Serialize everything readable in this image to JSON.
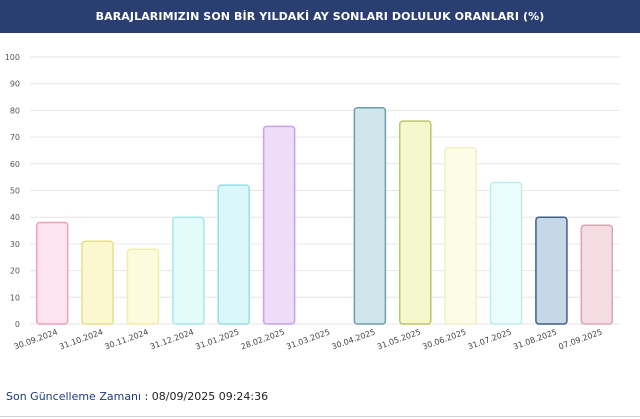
{
  "header": {
    "title": "BARAJLARIMIZIN SON BİR YILDAKİ AY SONLARI DOLULUK ORANLARI (%)"
  },
  "footer": {
    "label": "Son Güncelleme Zamanı",
    "separator": " : ",
    "value": "08/09/2025 09:24:36"
  },
  "chart_data": {
    "type": "bar",
    "title": "BARAJLARIMIZIN SON BİR YILDAKİ AY SONLARI DOLULUK ORANLARI (%)",
    "xlabel": "",
    "ylabel": "",
    "ylim": [
      0,
      100
    ],
    "yticks": [
      0,
      10,
      20,
      30,
      40,
      50,
      60,
      70,
      80,
      90,
      100
    ],
    "grid": true,
    "categories": [
      "30.09.2024",
      "31.10.2024",
      "30.11.2024",
      "31.12.2024",
      "31.01.2025",
      "28.02.2025",
      "31.03.2025",
      "30.04.2025",
      "31.05.2025",
      "30.06.2025",
      "31.07.2025",
      "31.08.2025",
      "07.09.2025"
    ],
    "values": [
      38,
      31,
      28,
      40,
      52,
      74,
      null,
      81,
      76,
      66,
      53,
      40,
      37
    ],
    "colors": [
      "#fde4ee",
      "#fbf8cf",
      "#fcfbdc",
      "#e3fbfb",
      "#dcf7f9",
      "#eedcfb",
      "#ffffff",
      "#cfe6ec",
      "#f5f8cc",
      "#fdfde6",
      "#ebfdfd",
      "#c5d7e9",
      "#f3dde3"
    ],
    "borders": [
      "#ef9fc0",
      "#e8df8c",
      "#f0ecac",
      "#a8e8ea",
      "#96dfe6",
      "#c7a2e4",
      "#ffffff",
      "#6f9eac",
      "#bfc66a",
      "#efefc7",
      "#bdeced",
      "#3f5f86",
      "#d9a5b4"
    ]
  }
}
